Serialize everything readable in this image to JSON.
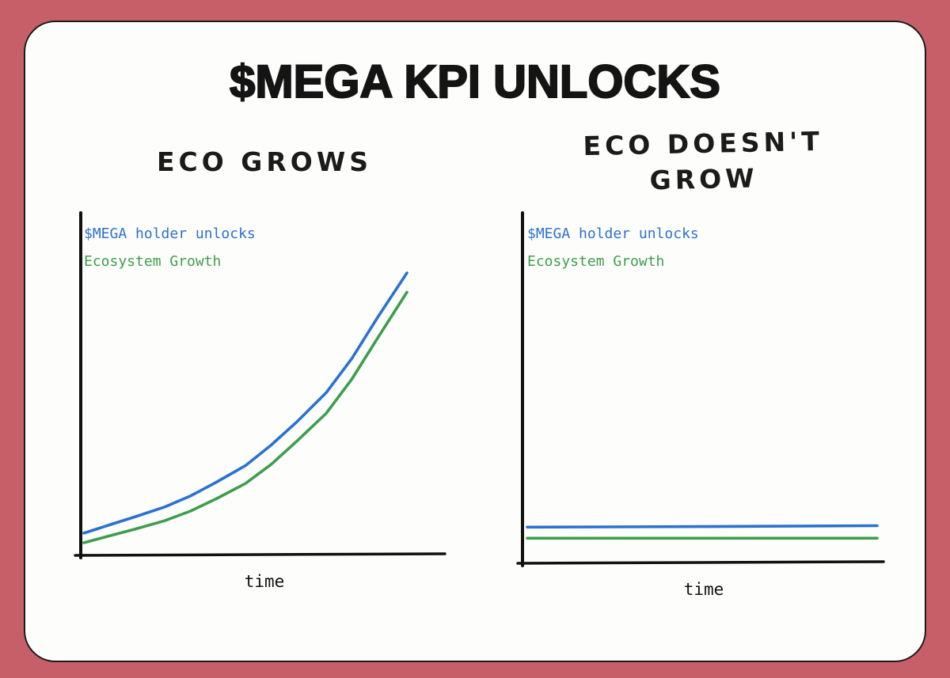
{
  "page": {
    "title": "$MEGA KPI UNLOCKS",
    "background_color": "#c65f67",
    "card_color": "#fdfdfb",
    "ink_color": "#141414"
  },
  "chart_data": [
    {
      "type": "line",
      "title": "ECO GROWS",
      "xlabel": "time",
      "ylabel": "",
      "ylim": [
        0,
        1
      ],
      "grid": false,
      "legend_position": "top-left",
      "x": [
        0,
        0.08,
        0.16,
        0.25,
        0.33,
        0.41,
        0.5,
        0.58,
        0.66,
        0.75,
        0.83,
        0.91,
        1
      ],
      "series": [
        {
          "name": "$MEGA holder unlocks",
          "color": "#2b72cf",
          "values": [
            0.055,
            0.085,
            0.115,
            0.15,
            0.19,
            0.24,
            0.3,
            0.375,
            0.46,
            0.565,
            0.69,
            0.84,
            1.0
          ]
        },
        {
          "name": "Ecosystem Growth",
          "color": "#3d9e4d",
          "values": [
            0.02,
            0.045,
            0.07,
            0.1,
            0.135,
            0.18,
            0.235,
            0.305,
            0.39,
            0.49,
            0.615,
            0.765,
            0.93
          ]
        }
      ]
    },
    {
      "type": "line",
      "title": "ECO DOESN'T GROW",
      "title_lines": [
        "ECO DOESN'T",
        "GROW"
      ],
      "xlabel": "time",
      "ylabel": "",
      "ylim": [
        0,
        1
      ],
      "grid": false,
      "legend_position": "top-left",
      "x": [
        0,
        0.5,
        1
      ],
      "series": [
        {
          "name": "$MEGA holder unlocks",
          "color": "#2b72cf",
          "values": [
            0.105,
            0.107,
            0.11
          ]
        },
        {
          "name": "Ecosystem Growth",
          "color": "#3d9e4d",
          "values": [
            0.065,
            0.065,
            0.065
          ]
        }
      ]
    }
  ]
}
